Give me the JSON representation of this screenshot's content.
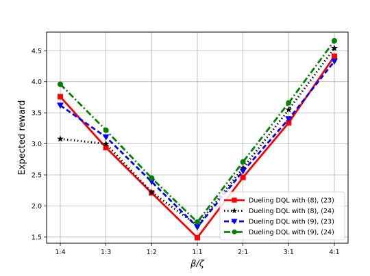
{
  "chart_data": {
    "type": "line",
    "title": "",
    "xlabel": "β/ζ",
    "ylabel": "Expected reward",
    "categories": [
      "1:4",
      "1:3",
      "1:2",
      "1:1",
      "2:1",
      "3:1",
      "4:1"
    ],
    "ylim": [
      1.4,
      4.8
    ],
    "yticks": [
      "1.5",
      "2.0",
      "2.5",
      "3.0",
      "3.5",
      "4.0",
      "4.5"
    ],
    "grid": true,
    "legend_position": "lower-right",
    "series": [
      {
        "name": "Dueling DQL with (8), (23)",
        "color": "#ff0000",
        "line": "solid",
        "marker": "square",
        "values": [
          3.76,
          2.94,
          2.21,
          1.49,
          2.46,
          3.34,
          4.41
        ]
      },
      {
        "name": "Dueling DQL with (8), (24)",
        "color": "#000000",
        "line": "dotted",
        "marker": "star",
        "values": [
          3.08,
          3.0,
          2.22,
          1.69,
          2.61,
          3.55,
          4.54
        ]
      },
      {
        "name": "Dueling DQL with (9), (23)",
        "color": "#0000ff",
        "line": "dashed",
        "marker": "triangle-down",
        "values": [
          3.62,
          3.11,
          2.39,
          1.66,
          2.56,
          3.4,
          4.33
        ]
      },
      {
        "name": "Dueling DQL with (9), (24)",
        "color": "#008000",
        "line": "dashdot",
        "marker": "circle",
        "values": [
          3.96,
          3.22,
          2.45,
          1.74,
          2.71,
          3.66,
          4.66
        ]
      }
    ]
  }
}
